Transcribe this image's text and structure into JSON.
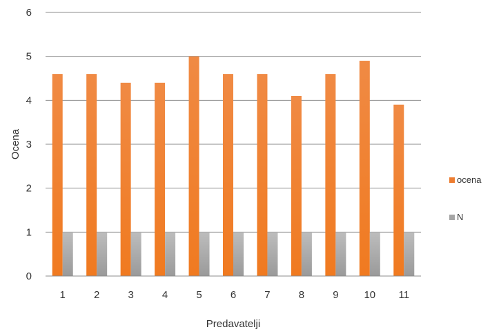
{
  "chart_data": {
    "type": "bar",
    "categories": [
      "1",
      "2",
      "3",
      "4",
      "5",
      "6",
      "7",
      "8",
      "9",
      "10",
      "11"
    ],
    "series": [
      {
        "name": "ocena",
        "values": [
          4.6,
          4.6,
          4.4,
          4.4,
          5.0,
          4.6,
          4.6,
          4.1,
          4.6,
          4.9,
          3.9
        ],
        "color": "#ed7d31"
      },
      {
        "name": "N",
        "values": [
          1,
          1,
          1,
          1,
          1,
          1,
          1,
          1,
          1,
          1,
          1
        ],
        "color": "#a5a5a5"
      }
    ],
    "title": "",
    "xlabel": "Predavatelji",
    "ylabel": "Ocena",
    "ylim": [
      0,
      6
    ],
    "yticks": [
      "0",
      "1",
      "2",
      "3",
      "4",
      "5",
      "6"
    ],
    "grid": true,
    "legend_position": "right"
  }
}
